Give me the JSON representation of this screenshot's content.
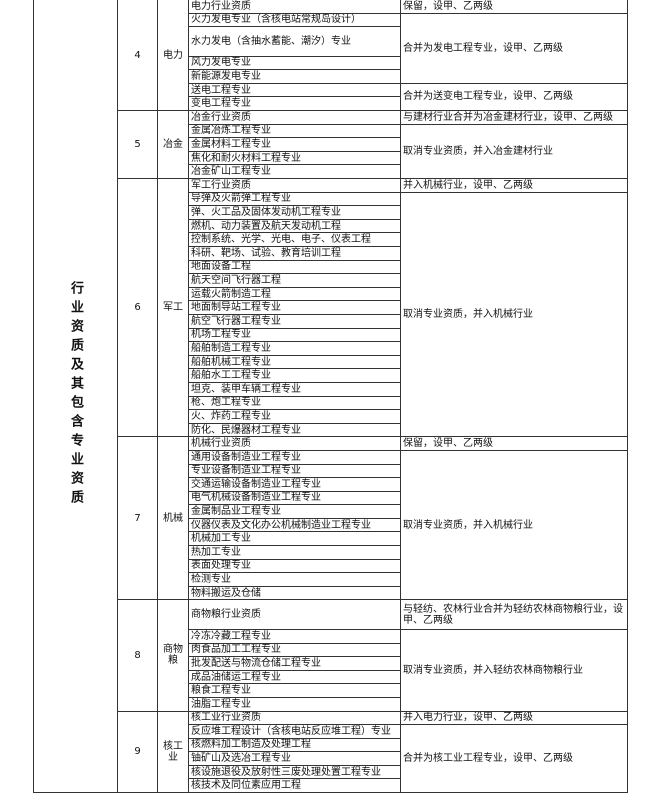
{
  "side_label": "行业资质及其包含专业资质",
  "groups": [
    {
      "number": "4",
      "name": "电力",
      "rows": [
        {
          "remark": "保留，设甲、乙两级",
          "items": [
            "电力行业资质"
          ]
        },
        {
          "remark": "合并为发电工程专业，设甲、乙两级",
          "items": [
            "火力发电专业（含核电站常规岛设计）",
            "水力发电（含抽水蓄能、潮汐）专业",
            "风力发电专业",
            "新能源发电专业"
          ]
        },
        {
          "remark": "合并为送变电工程专业，设甲、乙两级",
          "items": [
            "送电工程专业",
            "变电工程专业"
          ]
        }
      ]
    },
    {
      "number": "5",
      "name": "冶金",
      "rows": [
        {
          "remark": "与建材行业合并为冶金建材行业，设甲、乙两级",
          "items": [
            "冶金行业资质"
          ]
        },
        {
          "remark": "取消专业资质，并入冶金建材行业",
          "items": [
            "金属冶炼工程专业",
            "金属材料工程专业",
            "焦化和耐火材料工程专业",
            "冶金矿山工程专业"
          ]
        }
      ]
    },
    {
      "number": "6",
      "name": "军工",
      "rows": [
        {
          "remark": "并入机械行业，设甲、乙两级",
          "items": [
            "军工行业资质"
          ]
        },
        {
          "remark": "取消专业资质，并入机械行业",
          "items": [
            "导弹及火箭弹工程专业",
            "弹、火工品及固体发动机工程专业",
            "燃机、动力装置及航天发动机工程",
            "控制系统、光学、光电、电子、仪表工程",
            "科研、靶场、试验、教育培训工程",
            "地面设备工程",
            "航天空间飞行器工程",
            "运载火箭制造工程",
            "地面制导站工程专业",
            "航空飞行器工程专业",
            "机场工程专业",
            "船舶制造工程专业",
            "船舶机械工程专业",
            "船舶水工工程专业",
            "坦克、装甲车辆工程专业",
            "枪、炮工程专业",
            "火、炸药工程专业",
            "防化、民爆器材工程专业"
          ]
        }
      ]
    },
    {
      "number": "7",
      "name": "机械",
      "rows": [
        {
          "remark": "保留，设甲、乙两级",
          "items": [
            "机械行业资质"
          ]
        },
        {
          "remark": "取消专业资质，并入机械行业",
          "items": [
            "通用设备制造业工程专业",
            "专业设备制造业工程专业",
            "交通运输设备制造业工程专业",
            "电气机械设备制造业工程专业",
            "金属制品业工程专业",
            "仪器仪表及文化办公机械制造业工程专业",
            "机械加工专业",
            "热加工专业",
            "表面处理专业",
            "检测专业",
            "物料搬运及仓储"
          ]
        }
      ]
    },
    {
      "number": "8",
      "name": "商物粮",
      "rows": [
        {
          "remark": "与轻纺、农林行业合并为轻纺农林商物粮行业，设甲、乙两级",
          "items": [
            "商物粮行业资质"
          ]
        },
        {
          "remark": "取消专业资质，并入轻纺农林商物粮行业",
          "items": [
            "冷冻冷藏工程专业",
            "肉食品加工工程专业",
            "批发配送与物流仓储工程专业",
            "成品油储运工程专业",
            "粮食工程专业",
            "油脂工程专业"
          ]
        }
      ]
    },
    {
      "number": "9",
      "name": "核工业",
      "rows": [
        {
          "remark": "并入电力行业，设甲、乙两级",
          "items": [
            "核工业行业资质"
          ]
        },
        {
          "remark": "合并为核工业工程专业，设甲、乙两级",
          "items": [
            "反应堆工程设计（含核电站反应堆工程）专业",
            "核燃料加工制造及处理工程",
            "铀矿山及选冶工程专业",
            "核设施退役及放射性三废处理处置工程专业",
            "核技术及同位素应用工程"
          ]
        }
      ]
    }
  ]
}
